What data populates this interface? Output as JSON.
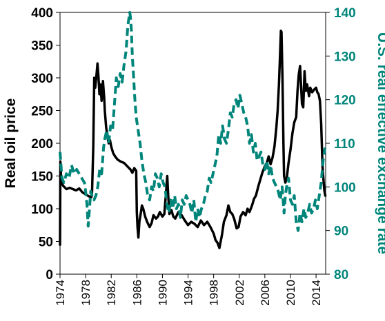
{
  "chart_data": {
    "type": "line",
    "title": "",
    "xlabel": "",
    "x_range": [
      1974,
      2015.5
    ],
    "x_ticks": [
      "1974",
      "1978",
      "1982",
      "1986",
      "1990",
      "1994",
      "1998",
      "2002",
      "2006",
      "2010",
      "2014"
    ],
    "grid": false,
    "legend": "none",
    "y_left": {
      "label": "Real oil price",
      "range": [
        0,
        400
      ],
      "ticks": [
        "0",
        "50",
        "100",
        "150",
        "200",
        "250",
        "300",
        "350",
        "400"
      ],
      "color": "#000000"
    },
    "y_right": {
      "label": "U.S. real effective exchange rate",
      "range": [
        80,
        140
      ],
      "ticks": [
        "80",
        "90",
        "100",
        "110",
        "120",
        "130",
        "140"
      ],
      "color": "#00857A"
    },
    "series": [
      {
        "axis": "left",
        "style": "solid",
        "color": "#000000",
        "x": [
          1974.0,
          1974.05,
          1974.2,
          1974.5,
          1975.0,
          1975.5,
          1976.0,
          1976.5,
          1977.0,
          1977.5,
          1978.0,
          1978.5,
          1978.9,
          1979.0,
          1979.2,
          1979.35,
          1979.5,
          1979.7,
          1979.85,
          1980.0,
          1980.15,
          1980.3,
          1980.5,
          1980.7,
          1980.9,
          1981.0,
          1981.2,
          1981.4,
          1981.6,
          1981.8,
          1982.0,
          1982.3,
          1982.6,
          1983.0,
          1983.5,
          1984.0,
          1984.5,
          1985.0,
          1985.3,
          1985.6,
          1985.9,
          1986.0,
          1986.1,
          1986.25,
          1986.4,
          1986.6,
          1986.8,
          1987.0,
          1987.3,
          1987.6,
          1988.0,
          1988.3,
          1988.6,
          1989.0,
          1989.3,
          1989.6,
          1990.0,
          1990.3,
          1990.6,
          1990.75,
          1990.9,
          1991.1,
          1991.4,
          1991.7,
          1992.0,
          1992.5,
          1993.0,
          1993.5,
          1994.0,
          1994.5,
          1995.0,
          1995.5,
          1996.0,
          1996.5,
          1997.0,
          1997.5,
          1998.0,
          1998.3,
          1998.6,
          1998.9,
          1999.0,
          1999.3,
          1999.6,
          2000.0,
          2000.3,
          2000.6,
          2000.9,
          2001.2,
          2001.6,
          2001.9,
          2002.2,
          2002.6,
          2003.0,
          2003.3,
          2003.6,
          2004.0,
          2004.3,
          2004.6,
          2005.0,
          2005.3,
          2005.6,
          2005.8,
          2006.0,
          2006.3,
          2006.6,
          2006.9,
          2007.2,
          2007.5,
          2007.8,
          2008.0,
          2008.2,
          2008.35,
          2008.5,
          2008.6,
          2008.75,
          2008.9,
          2009.0,
          2009.2,
          2009.4,
          2009.7,
          2010.0,
          2010.3,
          2010.6,
          2010.9,
          2011.1,
          2011.3,
          2011.5,
          2011.8,
          2012.0,
          2012.2,
          2012.4,
          2012.6,
          2012.9,
          2013.1,
          2013.4,
          2013.7,
          2014.0,
          2014.2,
          2014.4,
          2014.6,
          2014.8,
          2014.9,
          2015.0,
          2015.15,
          2015.3,
          2015.45
        ],
        "values": [
          45,
          172,
          140,
          135,
          130,
          132,
          130,
          128,
          131,
          125,
          122,
          119,
          118,
          125,
          195,
          300,
          285,
          305,
          322,
          302,
          275,
          290,
          265,
          295,
          270,
          250,
          225,
          210,
          200,
          205,
          195,
          185,
          180,
          175,
          172,
          170,
          165,
          160,
          155,
          162,
          158,
          95,
          72,
          56,
          80,
          92,
          105,
          100,
          88,
          80,
          72,
          78,
          90,
          85,
          88,
          95,
          88,
          92,
          130,
          150,
          120,
          92,
          98,
          88,
          85,
          95,
          90,
          82,
          75,
          80,
          77,
          72,
          82,
          75,
          80,
          72,
          62,
          52,
          48,
          40,
          45,
          60,
          80,
          90,
          105,
          95,
          92,
          85,
          70,
          72,
          88,
          95,
          90,
          100,
          95,
          105,
          115,
          120,
          135,
          145,
          155,
          160,
          165,
          170,
          180,
          168,
          178,
          195,
          225,
          250,
          290,
          330,
          372,
          370,
          300,
          200,
          150,
          140,
          145,
          170,
          190,
          215,
          232,
          240,
          280,
          305,
          318,
          260,
          255,
          310,
          280,
          290,
          272,
          285,
          278,
          282,
          285,
          278,
          275,
          265,
          230,
          200,
          165,
          145,
          128,
          120
        ]
      },
      {
        "axis": "right",
        "style": "dashed",
        "color": "#00857A",
        "x": [
          1974.0,
          1974.3,
          1974.6,
          1975.0,
          1975.4,
          1975.8,
          1976.2,
          1976.6,
          1977.0,
          1977.4,
          1977.8,
          1978.0,
          1978.2,
          1978.4,
          1978.6,
          1978.8,
          1979.0,
          1979.3,
          1979.6,
          1979.9,
          1980.2,
          1980.5,
          1980.8,
          1981.0,
          1981.3,
          1981.6,
          1981.9,
          1982.2,
          1982.5,
          1982.8,
          1983.1,
          1983.4,
          1983.7,
          1984.0,
          1984.3,
          1984.6,
          1984.9,
          1985.0,
          1985.15,
          1985.3,
          1985.5,
          1985.7,
          1985.9,
          1986.2,
          1986.5,
          1986.8,
          1987.1,
          1987.4,
          1987.7,
          1988.0,
          1988.3,
          1988.6,
          1988.9,
          1989.2,
          1989.5,
          1989.8,
          1990.1,
          1990.4,
          1990.7,
          1991.0,
          1991.3,
          1991.6,
          1991.9,
          1992.2,
          1992.5,
          1992.8,
          1993.1,
          1993.4,
          1993.7,
          1994.0,
          1994.3,
          1994.6,
          1994.9,
          1995.2,
          1995.5,
          1995.8,
          1996.1,
          1996.4,
          1996.7,
          1997.0,
          1997.3,
          1997.6,
          1997.9,
          1998.2,
          1998.5,
          1998.8,
          1999.1,
          1999.4,
          1999.7,
          2000.0,
          2000.3,
          2000.6,
          2000.9,
          2001.2,
          2001.5,
          2001.8,
          2002.1,
          2002.4,
          2002.7,
          2003.0,
          2003.3,
          2003.6,
          2003.9,
          2004.2,
          2004.5,
          2004.8,
          2005.1,
          2005.4,
          2005.7,
          2006.0,
          2006.3,
          2006.6,
          2006.9,
          2007.2,
          2007.5,
          2007.8,
          2008.1,
          2008.4,
          2008.7,
          2009.0,
          2009.2,
          2009.4,
          2009.7,
          2010.0,
          2010.3,
          2010.6,
          2010.9,
          2011.2,
          2011.5,
          2011.8,
          2012.1,
          2012.4,
          2012.7,
          2013.0,
          2013.3,
          2013.6,
          2013.9,
          2014.2,
          2014.5,
          2014.8,
          2015.1,
          2015.4
        ],
        "values": [
          108,
          102,
          101,
          103,
          102,
          105,
          103,
          104,
          103,
          102,
          101,
          99,
          96,
          91,
          95,
          99,
          98,
          97,
          98,
          100,
          104,
          103,
          109,
          111,
          113,
          110,
          114,
          113,
          119,
          125,
          123,
          126,
          124,
          128,
          131,
          137,
          140,
          139,
          136,
          130,
          125,
          120,
          116,
          113,
          110,
          106,
          103,
          101,
          98,
          97,
          100,
          99,
          103,
          102,
          100,
          103,
          101,
          100,
          96,
          94,
          97,
          95,
          98,
          95,
          96,
          93,
          97,
          96,
          98,
          97,
          96,
          94,
          97,
          92,
          95,
          93,
          95,
          96,
          98,
          99,
          102,
          101,
          103,
          105,
          107,
          112,
          110,
          114,
          111,
          110,
          113,
          117,
          116,
          119,
          120,
          118,
          121,
          119,
          117,
          116,
          114,
          110,
          112,
          108,
          110,
          106,
          107,
          108,
          105,
          104,
          106,
          103,
          105,
          102,
          101,
          100,
          99,
          97,
          100,
          94,
          98,
          100,
          102,
          97,
          96,
          98,
          92,
          90,
          94,
          92,
          95,
          93,
          94,
          96,
          94,
          95,
          97,
          95,
          98,
          101,
          106,
          109
        ]
      }
    ]
  }
}
